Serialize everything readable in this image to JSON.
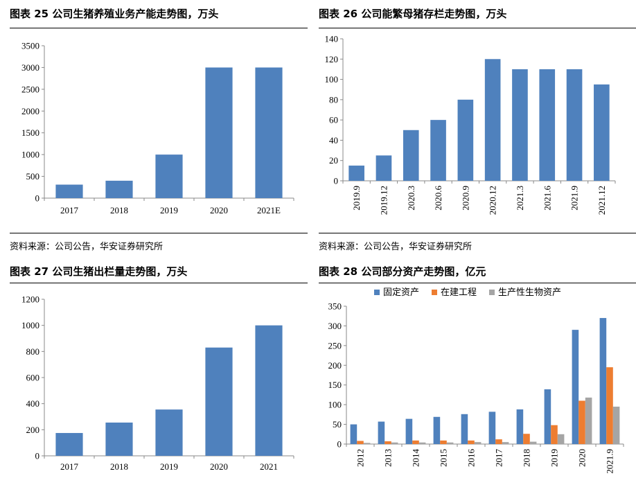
{
  "charts": [
    {
      "caption": "图表 25 公司生猪养殖业务产能走势图，万头",
      "source": "资料来源：公司公告，华安证券研究所",
      "type": "bar",
      "categories": [
        "2017",
        "2018",
        "2019",
        "2020",
        "2021E"
      ],
      "values": [
        310,
        400,
        1000,
        3000,
        3000
      ],
      "ylim": [
        0,
        3500
      ],
      "yticks": [
        0,
        500,
        1000,
        1500,
        2000,
        2500,
        3000,
        3500
      ],
      "color": "#4F81BD",
      "rotate_x_labels": false
    },
    {
      "caption": "图表 26 公司能繁母猪存栏走势图，万头",
      "source": "资料来源：公司公告，华安证券研究所",
      "type": "bar",
      "categories": [
        "2019.9",
        "2019.12",
        "2020.3",
        "2020.6",
        "2020.9",
        "2020.12",
        "2021.3",
        "2021.6",
        "2021.9",
        "2021.12"
      ],
      "values": [
        15,
        25,
        50,
        60,
        80,
        120,
        110,
        110,
        110,
        95
      ],
      "ylim": [
        0,
        140
      ],
      "yticks": [
        0,
        20,
        40,
        60,
        80,
        100,
        120,
        140
      ],
      "color": "#4F81BD",
      "rotate_x_labels": true
    },
    {
      "caption": "图表 27 公司生猪出栏量走势图，万头",
      "type": "bar",
      "categories": [
        "2017",
        "2018",
        "2019",
        "2020",
        "2021"
      ],
      "values": [
        175,
        255,
        355,
        830,
        1000
      ],
      "ylim": [
        0,
        1200
      ],
      "yticks": [
        0,
        200,
        400,
        600,
        800,
        1000,
        1200
      ],
      "color": "#4F81BD",
      "rotate_x_labels": false
    },
    {
      "caption": "图表 28 公司部分资产走势图，亿元",
      "type": "bar",
      "categories": [
        "2012",
        "2013",
        "2014",
        "2015",
        "2016",
        "2017",
        "2018",
        "2019",
        "2020",
        "2021.9"
      ],
      "series": [
        {
          "name": "固定资产",
          "color": "#4F81BD",
          "values": [
            50,
            57,
            64,
            69,
            76,
            82,
            88,
            139,
            290,
            320
          ]
        },
        {
          "name": "在建工程",
          "color": "#ED7D31",
          "values": [
            8,
            7,
            9,
            9,
            9,
            12,
            26,
            48,
            110,
            195
          ]
        },
        {
          "name": "生产性生物资产",
          "color": "#A5A5A5",
          "values": [
            3,
            4,
            4,
            4,
            5,
            5,
            6,
            25,
            118,
            95
          ]
        }
      ],
      "ylim": [
        0,
        350
      ],
      "yticks": [
        0,
        50,
        100,
        150,
        200,
        250,
        300,
        350
      ],
      "legend_position": "top",
      "rotate_x_labels": true
    }
  ]
}
